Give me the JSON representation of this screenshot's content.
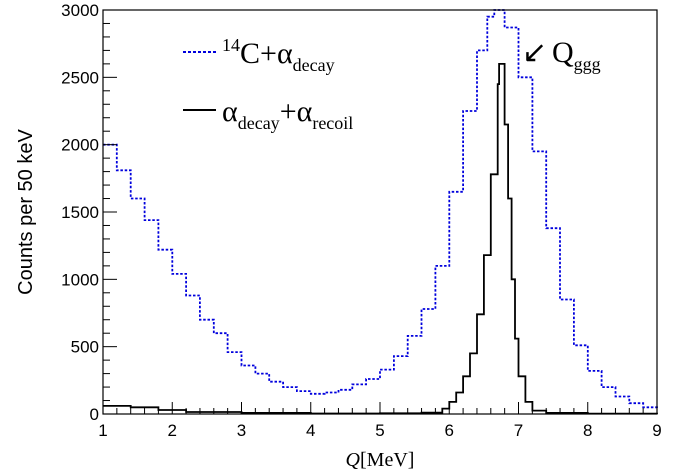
{
  "chart_data": {
    "type": "line",
    "xlabel": {
      "italic": "Q",
      "rest": "[MeV]"
    },
    "ylabel": "Counts per 50 keV",
    "xlim": [
      1,
      9
    ],
    "ylim": [
      0,
      3000
    ],
    "x_ticks": [
      "1",
      "2",
      "3",
      "4",
      "5",
      "6",
      "7",
      "8",
      "9"
    ],
    "y_ticks": [
      "0",
      "500",
      "1000",
      "1500",
      "2000",
      "2500",
      "3000"
    ],
    "grid": false,
    "legend_position": "top-left",
    "annotation": {
      "main": "Q",
      "sub": "ggg",
      "arrow": "↙"
    },
    "series": [
      {
        "name_parts": {
          "sup": "14",
          "main1": "C+",
          "greek": "α",
          "sub": "decay"
        },
        "style": "dotted",
        "color": "#0000dd",
        "points": [
          [
            1.0,
            2000
          ],
          [
            1.2,
            1810
          ],
          [
            1.4,
            1600
          ],
          [
            1.6,
            1440
          ],
          [
            1.8,
            1220
          ],
          [
            2.0,
            1040
          ],
          [
            2.2,
            880
          ],
          [
            2.4,
            700
          ],
          [
            2.6,
            600
          ],
          [
            2.8,
            460
          ],
          [
            3.0,
            360
          ],
          [
            3.2,
            300
          ],
          [
            3.4,
            240
          ],
          [
            3.6,
            200
          ],
          [
            3.8,
            170
          ],
          [
            4.0,
            150
          ],
          [
            4.2,
            160
          ],
          [
            4.4,
            180
          ],
          [
            4.6,
            220
          ],
          [
            4.8,
            260
          ],
          [
            5.0,
            330
          ],
          [
            5.2,
            430
          ],
          [
            5.4,
            580
          ],
          [
            5.6,
            780
          ],
          [
            5.8,
            1100
          ],
          [
            6.0,
            1650
          ],
          [
            6.2,
            2250
          ],
          [
            6.4,
            2700
          ],
          [
            6.55,
            2950
          ],
          [
            6.65,
            3000
          ],
          [
            6.8,
            2870
          ],
          [
            7.0,
            2500
          ],
          [
            7.2,
            1950
          ],
          [
            7.4,
            1380
          ],
          [
            7.6,
            850
          ],
          [
            7.8,
            510
          ],
          [
            8.0,
            320
          ],
          [
            8.2,
            200
          ],
          [
            8.4,
            130
          ],
          [
            8.6,
            80
          ],
          [
            8.8,
            50
          ],
          [
            9.0,
            40
          ]
        ]
      },
      {
        "name_parts": {
          "greek1": "α",
          "sub1": "decay",
          "plus": "+",
          "greek2": "α",
          "sub2": "recoil"
        },
        "style": "solid",
        "color": "#000000",
        "points": [
          [
            1.0,
            60
          ],
          [
            1.4,
            50
          ],
          [
            1.8,
            30
          ],
          [
            2.2,
            15
          ],
          [
            3.0,
            8
          ],
          [
            4.0,
            4
          ],
          [
            5.0,
            5
          ],
          [
            5.6,
            10
          ],
          [
            5.9,
            40
          ],
          [
            6.0,
            90
          ],
          [
            6.1,
            160
          ],
          [
            6.2,
            280
          ],
          [
            6.3,
            450
          ],
          [
            6.4,
            740
          ],
          [
            6.5,
            1180
          ],
          [
            6.6,
            1780
          ],
          [
            6.7,
            2450
          ],
          [
            6.72,
            2600
          ],
          [
            6.8,
            2150
          ],
          [
            6.85,
            1600
          ],
          [
            6.9,
            1000
          ],
          [
            6.95,
            560
          ],
          [
            7.0,
            280
          ],
          [
            7.1,
            90
          ],
          [
            7.2,
            25
          ],
          [
            7.4,
            8
          ],
          [
            8.0,
            3
          ],
          [
            9.0,
            0
          ]
        ]
      }
    ]
  }
}
